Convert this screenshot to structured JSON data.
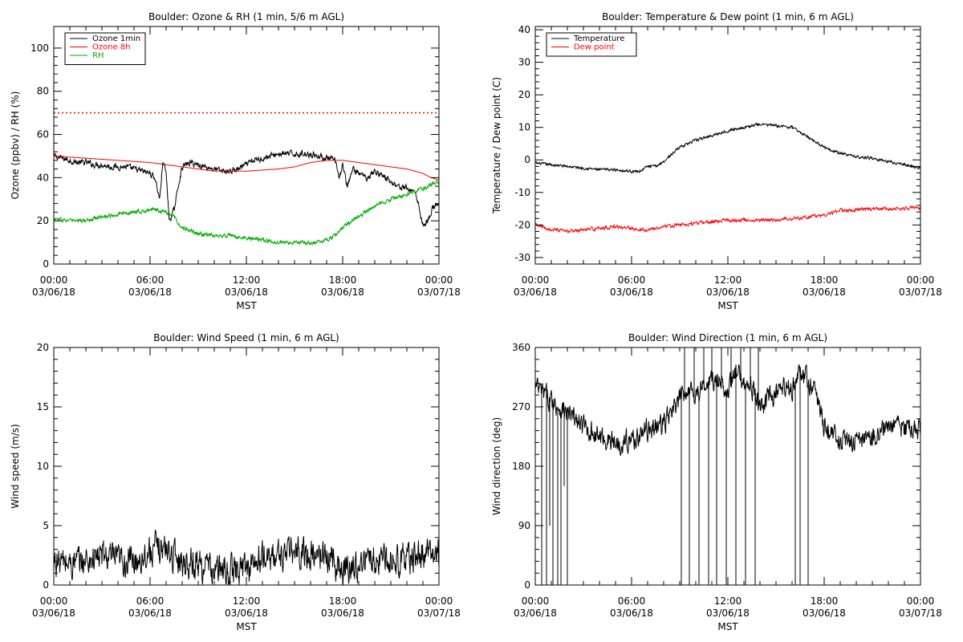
{
  "chart_data": [
    {
      "type": "line",
      "title": "Boulder: Ozone & RH (1 min, 5/6 m AGL)",
      "ylabel": "Ozone (ppbv) / RH (%)",
      "xlabel": "MST",
      "ylim": [
        0,
        110
      ],
      "yticks": [
        "0",
        "20",
        "40",
        "60",
        "80",
        "100"
      ],
      "ytick_values": [
        0,
        20,
        40,
        60,
        80,
        100
      ],
      "xlim": [
        0,
        24
      ],
      "xticks": [
        {
          "time": "00:00",
          "date": "03/06/18",
          "hour": 0
        },
        {
          "time": "06:00",
          "date": "03/06/18",
          "hour": 6
        },
        {
          "time": "12:00",
          "date": "03/06/18",
          "hour": 12
        },
        {
          "time": "18:00",
          "date": "03/06/18",
          "hour": 18
        },
        {
          "time": "00:00",
          "date": "03/07/18",
          "hour": 24
        }
      ],
      "legend_position": "top-left",
      "reference_line": {
        "value": 70,
        "color": "#ff0000",
        "style": "dotted"
      },
      "series": [
        {
          "name": "Ozone 1min",
          "color": "#000000",
          "noise": 1.2,
          "x": [
            0,
            0.5,
            1,
            1.5,
            2,
            2.5,
            3,
            3.5,
            4,
            4.5,
            5,
            5.5,
            6,
            6.3,
            6.6,
            6.8,
            7,
            7.2,
            7.5,
            7.8,
            8,
            8.5,
            9,
            9.5,
            10,
            10.5,
            11,
            11.5,
            12,
            12.5,
            13,
            13.5,
            14,
            14.5,
            15,
            15.5,
            16,
            16.5,
            17,
            17.5,
            17.8,
            18,
            18.3,
            18.6,
            19,
            19.5,
            20,
            20.5,
            21,
            21.5,
            22,
            22.3,
            22.5,
            22.8,
            23,
            23.3,
            23.6,
            24
          ],
          "y": [
            50,
            49,
            48,
            47,
            47,
            46,
            46,
            45,
            45,
            45,
            44,
            43,
            42,
            40,
            30,
            48,
            42,
            20,
            25,
            38,
            45,
            47,
            46,
            45,
            44,
            43,
            43,
            44,
            46,
            48,
            49,
            50,
            51,
            51,
            51,
            51,
            51,
            50,
            49,
            48,
            40,
            46,
            35,
            44,
            42,
            40,
            43,
            41,
            38,
            36,
            35,
            34,
            34,
            25,
            18,
            20,
            26,
            28
          ]
        },
        {
          "name": "Ozone 8h",
          "color": "#ff0000",
          "noise": 0,
          "x": [
            0,
            2,
            4,
            6,
            8,
            10,
            12,
            14,
            15,
            16,
            17,
            18,
            19,
            20,
            21,
            22,
            23,
            23.5,
            24
          ],
          "y": [
            50,
            49,
            48,
            47,
            45,
            43,
            43,
            44,
            45,
            47,
            48,
            48,
            47,
            46,
            45,
            44,
            42,
            40,
            39
          ]
        },
        {
          "name": "RH",
          "color": "#00aa00",
          "noise": 0.8,
          "x": [
            0,
            1,
            2,
            3,
            4,
            5,
            6,
            6.5,
            7,
            7.5,
            8,
            9,
            10,
            11,
            12,
            13,
            14,
            15,
            16,
            17,
            17.5,
            18,
            19,
            20,
            21,
            22,
            23,
            24
          ],
          "y": [
            21,
            20,
            20,
            22,
            23,
            24,
            25,
            25,
            24,
            22,
            17,
            14,
            13,
            13,
            12,
            11,
            10,
            10,
            10,
            11,
            13,
            17,
            22,
            27,
            30,
            32,
            35,
            38
          ]
        }
      ]
    },
    {
      "type": "line",
      "title": "Boulder: Temperature & Dew point (1 min, 6 m AGL)",
      "ylabel": "Temperature / Dew point (C)",
      "xlabel": "MST",
      "ylim": [
        -32,
        41
      ],
      "yticks": [
        "-30",
        "-20",
        "-10",
        "0",
        "10",
        "20",
        "30",
        "40"
      ],
      "ytick_values": [
        -30,
        -20,
        -10,
        0,
        10,
        20,
        30,
        40
      ],
      "xlim": [
        0,
        24
      ],
      "xticks": [
        {
          "time": "00:00",
          "date": "03/06/18",
          "hour": 0
        },
        {
          "time": "06:00",
          "date": "03/06/18",
          "hour": 6
        },
        {
          "time": "12:00",
          "date": "03/06/18",
          "hour": 12
        },
        {
          "time": "18:00",
          "date": "03/06/18",
          "hour": 18
        },
        {
          "time": "00:00",
          "date": "03/07/18",
          "hour": 24
        }
      ],
      "legend_position": "top-left",
      "series": [
        {
          "name": "Temperature",
          "color": "#000000",
          "noise": 0.35,
          "x": [
            0,
            1,
            2,
            3,
            4,
            5,
            6,
            6.5,
            7,
            7.5,
            8,
            9,
            10,
            11,
            12,
            13,
            14,
            15,
            16,
            17,
            18,
            19,
            20,
            21,
            22,
            23,
            24
          ],
          "y": [
            -1,
            -1.5,
            -2,
            -2.5,
            -3,
            -3,
            -3.5,
            -3.5,
            -2,
            -2,
            -0.5,
            4,
            6,
            7.5,
            9,
            10,
            11,
            10.5,
            10,
            7,
            4,
            2,
            1,
            0.5,
            -0.5,
            -1.5,
            -2.5
          ]
        },
        {
          "name": "Dew point",
          "color": "#ff0000",
          "noise": 0.45,
          "x": [
            0,
            1,
            2,
            3,
            4,
            5,
            6,
            7,
            8,
            9,
            10,
            11,
            12,
            13,
            14,
            15,
            16,
            17,
            18,
            19,
            20,
            21,
            22,
            23,
            24
          ],
          "y": [
            -20,
            -21.5,
            -22,
            -21.5,
            -21,
            -20.5,
            -21,
            -21.5,
            -20.5,
            -20,
            -19.5,
            -19,
            -18.5,
            -18.5,
            -18.5,
            -18.5,
            -18,
            -17.5,
            -17,
            -15.5,
            -15.5,
            -15,
            -15,
            -14.8,
            -14.8
          ]
        }
      ]
    },
    {
      "type": "line",
      "title": "Boulder: Wind Speed (1 min, 6 m AGL)",
      "ylabel": "Wind speed (m/s)",
      "xlabel": "MST",
      "ylim": [
        0,
        20
      ],
      "yticks": [
        "0",
        "5",
        "10",
        "15",
        "20"
      ],
      "ytick_values": [
        0,
        5,
        10,
        15,
        20
      ],
      "xlim": [
        0,
        24
      ],
      "xticks": [
        {
          "time": "00:00",
          "date": "03/06/18",
          "hour": 0
        },
        {
          "time": "06:00",
          "date": "03/06/18",
          "hour": 6
        },
        {
          "time": "12:00",
          "date": "03/06/18",
          "hour": 12
        },
        {
          "time": "18:00",
          "date": "03/06/18",
          "hour": 18
        },
        {
          "time": "00:00",
          "date": "03/07/18",
          "hour": 24
        }
      ],
      "series": [
        {
          "name": "",
          "color": "#000000",
          "noise": 1.1,
          "x": [
            0,
            1,
            2,
            3,
            4,
            5,
            6,
            6.5,
            7,
            8,
            9,
            10,
            11,
            12,
            13,
            14,
            15,
            16,
            17,
            17.5,
            18,
            19,
            20,
            21,
            22,
            23,
            24
          ],
          "y": [
            2,
            1.8,
            2,
            2.5,
            2,
            2,
            2.8,
            3.2,
            3,
            2,
            1.8,
            1.2,
            1.2,
            1.5,
            2.2,
            2.5,
            2.8,
            2.5,
            2.5,
            2,
            1.2,
            1.8,
            2.2,
            2.2,
            2.2,
            2.5,
            2.7
          ]
        }
      ]
    },
    {
      "type": "line",
      "title": "Boulder: Wind Direction (1 min, 6 m AGL)",
      "ylabel": "Wind direction (deg)",
      "xlabel": "MST",
      "ylim": [
        0,
        360
      ],
      "yticks": [
        "0",
        "90",
        "180",
        "270",
        "360"
      ],
      "ytick_values": [
        0,
        90,
        180,
        270,
        360
      ],
      "xlim": [
        0,
        24
      ],
      "xticks": [
        {
          "time": "00:00",
          "date": "03/06/18",
          "hour": 0
        },
        {
          "time": "06:00",
          "date": "03/06/18",
          "hour": 6
        },
        {
          "time": "12:00",
          "date": "03/06/18",
          "hour": 12
        },
        {
          "time": "18:00",
          "date": "03/06/18",
          "hour": 18
        },
        {
          "time": "00:00",
          "date": "03/07/18",
          "hour": 24
        }
      ],
      "series": [
        {
          "name": "",
          "color": "#000000",
          "noise": 14,
          "x": [
            0,
            0.5,
            1,
            1.5,
            2,
            2.5,
            3,
            4,
            5,
            6,
            7,
            8,
            8.5,
            9,
            9.5,
            10,
            11,
            12,
            12.5,
            13,
            13.5,
            14,
            15,
            16,
            16.5,
            17,
            17.5,
            18,
            19,
            20,
            21,
            22,
            23,
            24
          ],
          "y": [
            300,
            290,
            280,
            270,
            260,
            250,
            240,
            225,
            215,
            220,
            235,
            245,
            260,
            280,
            300,
            290,
            310,
            300,
            320,
            310,
            300,
            270,
            290,
            300,
            320,
            310,
            290,
            240,
            220,
            215,
            225,
            240,
            240,
            235
          ],
          "spikes": [
            [
              0.4,
              0
            ],
            [
              0.7,
              0
            ],
            [
              0.9,
              90
            ],
            [
              1.1,
              0
            ],
            [
              1.4,
              0
            ],
            [
              1.6,
              0
            ],
            [
              1.8,
              150
            ],
            [
              2.0,
              0
            ],
            [
              9.1,
              0
            ],
            [
              9.3,
              360
            ],
            [
              9.6,
              0
            ],
            [
              9.9,
              360
            ],
            [
              10.2,
              0
            ],
            [
              10.5,
              360
            ],
            [
              10.8,
              0
            ],
            [
              11.0,
              360
            ],
            [
              11.3,
              0
            ],
            [
              11.6,
              360
            ],
            [
              11.9,
              0
            ],
            [
              12.2,
              360
            ],
            [
              12.5,
              0
            ],
            [
              12.8,
              360
            ],
            [
              13.1,
              0
            ],
            [
              13.4,
              360
            ],
            [
              13.7,
              0
            ],
            [
              13.9,
              360
            ],
            [
              16.2,
              0
            ],
            [
              16.5,
              0
            ],
            [
              17.0,
              0
            ]
          ]
        }
      ]
    }
  ]
}
